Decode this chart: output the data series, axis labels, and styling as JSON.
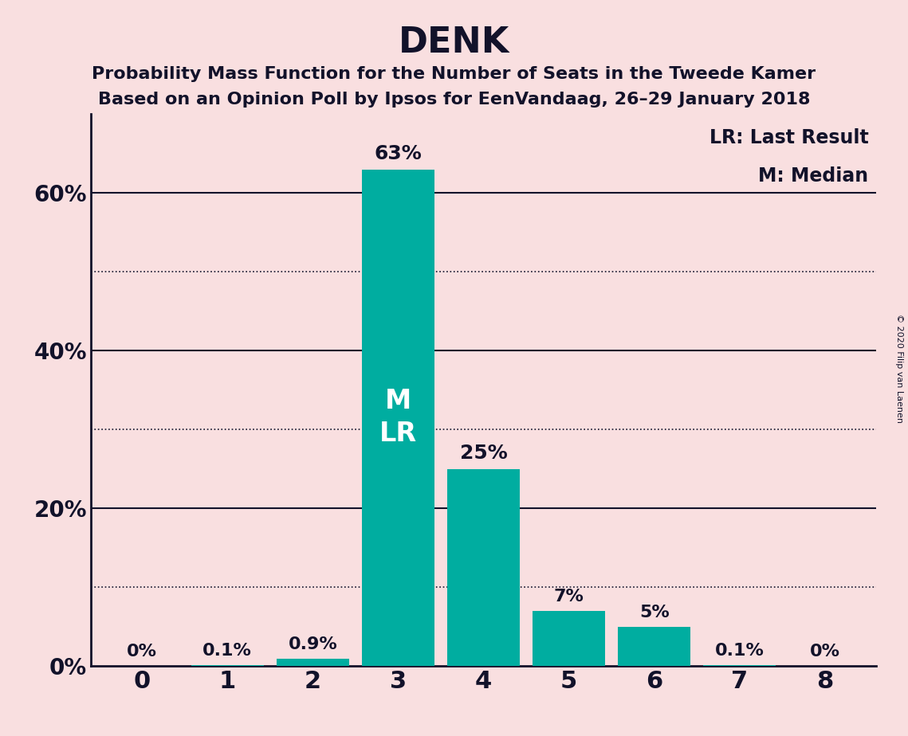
{
  "title": "DENK",
  "subtitle1": "Probability Mass Function for the Number of Seats in the Tweede Kamer",
  "subtitle2": "Based on an Opinion Poll by Ipsos for EenVandaag, 26–29 January 2018",
  "copyright": "© 2020 Filip van Laenen",
  "categories": [
    0,
    1,
    2,
    3,
    4,
    5,
    6,
    7,
    8
  ],
  "values": [
    0.0,
    0.001,
    0.009,
    0.63,
    0.25,
    0.07,
    0.05,
    0.001,
    0.0
  ],
  "labels": [
    "0%",
    "0.1%",
    "0.9%",
    "63%",
    "25%",
    "7%",
    "5%",
    "0.1%",
    "0%"
  ],
  "bar_color": "#00ADA0",
  "background_color": "#F9DFE0",
  "label_color_inside": "#FFFFFF",
  "label_color_outside": "#12122a",
  "grid_solid_color": "#12122a",
  "grid_dotted_color": "#12122a",
  "median_seat": 3,
  "last_result_seat": 3,
  "annotation_lr": "LR: Last Result",
  "annotation_m": "M: Median",
  "annotation_color": "#12122a",
  "yticks_labeled": [
    0.0,
    0.2,
    0.4,
    0.6
  ],
  "ytick_labels": [
    "0%",
    "20%",
    "40%",
    "60%"
  ],
  "yticks_dotted": [
    0.1,
    0.3,
    0.5
  ],
  "ylim": [
    0,
    0.7
  ],
  "title_fontsize": 32,
  "subtitle_fontsize": 16,
  "label_fontsize_large": 18,
  "label_fontsize_small": 16,
  "tick_fontsize": 20,
  "legend_fontsize": 17,
  "mlr_fontsize": 24
}
